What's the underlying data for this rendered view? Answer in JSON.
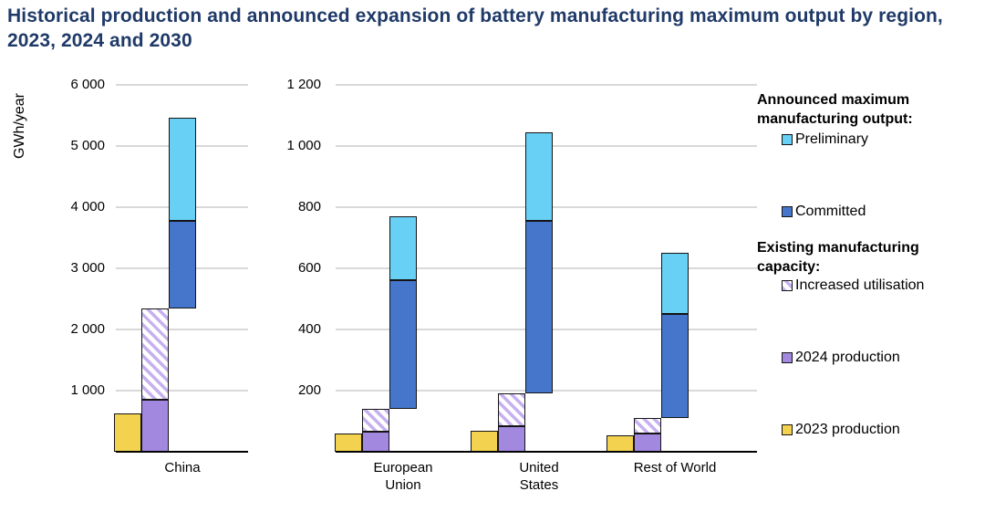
{
  "title": "Historical production and announced expansion of battery manufacturing maximum output by region, 2023, 2024 and 2030",
  "y_axis_label": "GWh/year",
  "colors": {
    "title": "#1F3A68",
    "preliminary": "#68CFF5",
    "committed": "#4576CB",
    "production_2024": "#A388E0",
    "production_2023": "#F2D24F",
    "increased_utilisation_stripe": "#C7B0F0",
    "increased_utilisation_bg": "#FFFFFF",
    "gridline": "#D9D9D9",
    "axis": "#000000"
  },
  "legend": {
    "announced_header": "Announced maximum manufacturing output:",
    "existing_header": "Existing manufacturing capacity:",
    "preliminary_label": "Preliminary",
    "committed_label": "Committed",
    "increased_utilisation_label": "Increased utilisation",
    "production_2024_label": "2024 production",
    "production_2023_label": "2023 production"
  },
  "chart_data": {
    "type": "bar",
    "unit": "GWh/year",
    "stacking": "per region: yellow 2023 production bar; purple 2024 production bar with hatched increased-utilisation segment above it up to existing capacity; blue announced bar starts at existing capacity with committed (dark) then preliminary (light) stacked to top",
    "legend_position": "right",
    "grid": true,
    "panels": [
      {
        "ylim": [
          0,
          6000
        ],
        "ytick_step": 1000,
        "yticks": [
          {
            "value": 1000,
            "label": "1 000"
          },
          {
            "value": 2000,
            "label": "2 000"
          },
          {
            "value": 3000,
            "label": "3 000"
          },
          {
            "value": 4000,
            "label": "4 000"
          },
          {
            "value": 5000,
            "label": "5 000"
          },
          {
            "value": 6000,
            "label": "6 000"
          }
        ],
        "regions": [
          {
            "name": "China",
            "label_lines": [
              "China"
            ],
            "production_2023": 620,
            "production_2024": 850,
            "increased_utilisation_to": 2350,
            "committed_from": 2350,
            "committed_to": 3780,
            "preliminary_to": 5470
          }
        ]
      },
      {
        "ylim": [
          0,
          1200
        ],
        "ytick_step": 200,
        "yticks": [
          {
            "value": 200,
            "label": "200"
          },
          {
            "value": 400,
            "label": "400"
          },
          {
            "value": 600,
            "label": "600"
          },
          {
            "value": 800,
            "label": "800"
          },
          {
            "value": 1000,
            "label": "1 000"
          },
          {
            "value": 1200,
            "label": "1 200"
          }
        ],
        "regions": [
          {
            "name": "European Union",
            "label_lines": [
              "European",
              "Union"
            ],
            "production_2023": 60,
            "production_2024": 65,
            "increased_utilisation_to": 140,
            "committed_from": 140,
            "committed_to": 560,
            "preliminary_to": 770
          },
          {
            "name": "United States",
            "label_lines": [
              "United",
              "States"
            ],
            "production_2023": 70,
            "production_2024": 85,
            "increased_utilisation_to": 190,
            "committed_from": 190,
            "committed_to": 755,
            "preliminary_to": 1045
          },
          {
            "name": "Rest of World",
            "label_lines": [
              "Rest of World"
            ],
            "production_2023": 55,
            "production_2024": 60,
            "increased_utilisation_to": 110,
            "committed_from": 110,
            "committed_to": 450,
            "preliminary_to": 650
          }
        ]
      }
    ]
  }
}
